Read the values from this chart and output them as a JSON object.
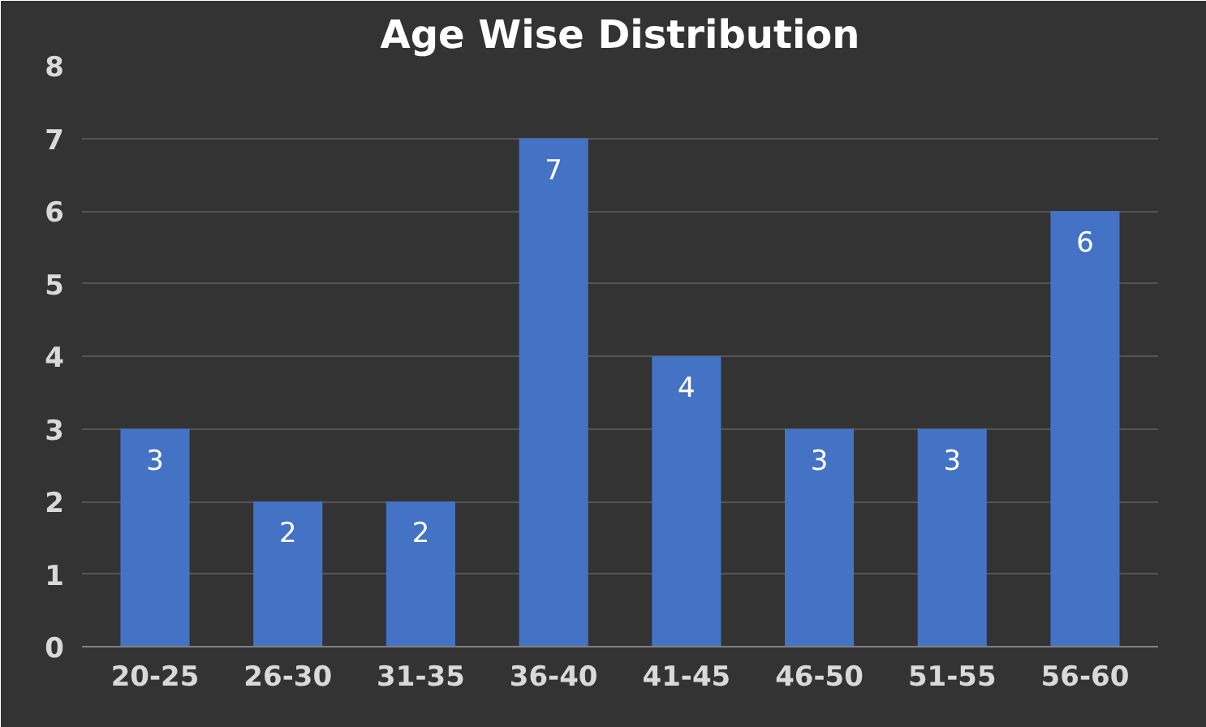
{
  "chart_data": {
    "type": "bar",
    "title": "Age Wise Distribution",
    "categories": [
      "20-25",
      "26-30",
      "31-35",
      "36-40",
      "41-45",
      "46-50",
      "51-55",
      "56-60"
    ],
    "values": [
      3,
      2,
      2,
      7,
      4,
      3,
      3,
      6
    ],
    "color": "#4472c4",
    "ylim": [
      0,
      8
    ],
    "yticks": [
      0,
      1,
      2,
      3,
      4,
      5,
      6,
      7,
      8
    ],
    "grid": "y",
    "data_labels": true
  }
}
